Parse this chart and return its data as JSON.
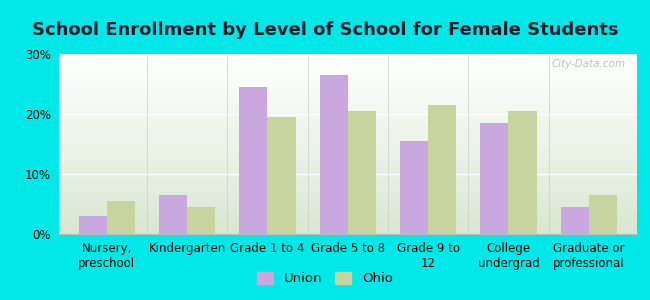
{
  "title": "School Enrollment by Level of School for Female Students",
  "categories": [
    "Nursery,\npreschool",
    "Kindergarten",
    "Grade 1 to 4",
    "Grade 5 to 8",
    "Grade 9 to\n12",
    "College\nundergrad",
    "Graduate or\nprofessional"
  ],
  "union_values": [
    3.0,
    6.5,
    24.5,
    26.5,
    15.5,
    18.5,
    4.5
  ],
  "ohio_values": [
    5.5,
    4.5,
    19.5,
    20.5,
    21.5,
    20.5,
    6.5
  ],
  "union_color": "#c9a8e0",
  "ohio_color": "#c8d4a0",
  "ylim": [
    0,
    30
  ],
  "yticks": [
    0,
    10,
    20,
    30
  ],
  "ytick_labels": [
    "0%",
    "10%",
    "20%",
    "30%"
  ],
  "background_color": "#00e8e8",
  "watermark": "City-Data.com",
  "legend_union": "Union",
  "legend_ohio": "Ohio",
  "title_fontsize": 13,
  "tick_fontsize": 8.5,
  "legend_fontsize": 9.5
}
